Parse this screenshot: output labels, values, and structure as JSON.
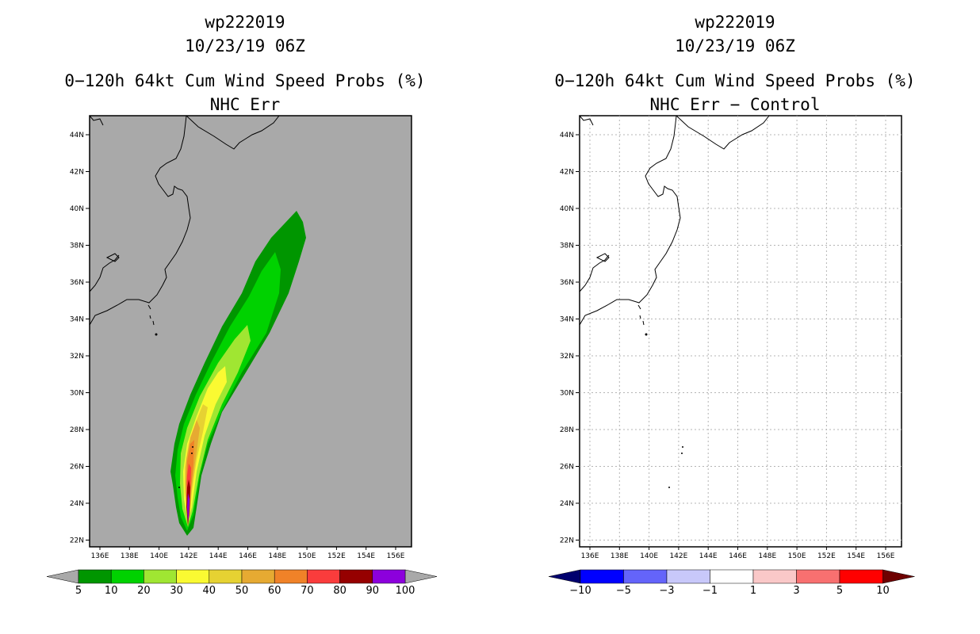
{
  "left": {
    "storm_id": "wp222019",
    "datetime": "10/23/19 06Z",
    "product": "0−120h 64kt Cum Wind Speed Probs (%)",
    "subtitle": "NHC Err",
    "colorbar": {
      "labels": [
        "5",
        "10",
        "20",
        "30",
        "40",
        "50",
        "60",
        "70",
        "80",
        "90",
        "100"
      ],
      "colors": [
        "#009600",
        "#00d200",
        "#a0e632",
        "#fafa32",
        "#e6d232",
        "#e6aa32",
        "#f08228",
        "#fa3c3c",
        "#960000",
        "#8c00dc"
      ]
    }
  },
  "right": {
    "storm_id": "wp222019",
    "datetime": "10/23/19 06Z",
    "product": "0−120h 64kt Cum Wind Speed Probs (%)",
    "subtitle": "NHC Err − Control",
    "colorbar": {
      "labels": [
        "−10",
        "−5",
        "−3",
        "−1",
        "1",
        "3",
        "5",
        "10"
      ],
      "colors": [
        "#0000ff",
        "#6464fa",
        "#c8c8fa",
        "#ffffff",
        "#fac8c8",
        "#f87070",
        "#ff0000"
      ]
    }
  },
  "axes": {
    "lat_labels": [
      "44N",
      "42N",
      "40N",
      "38N",
      "36N",
      "34N",
      "32N",
      "30N",
      "28N",
      "26N",
      "24N",
      "22N"
    ],
    "lon_labels": [
      "136E",
      "138E",
      "140E",
      "142E",
      "144E",
      "146E",
      "148E",
      "150E",
      "152E",
      "154E",
      "156E"
    ]
  }
}
